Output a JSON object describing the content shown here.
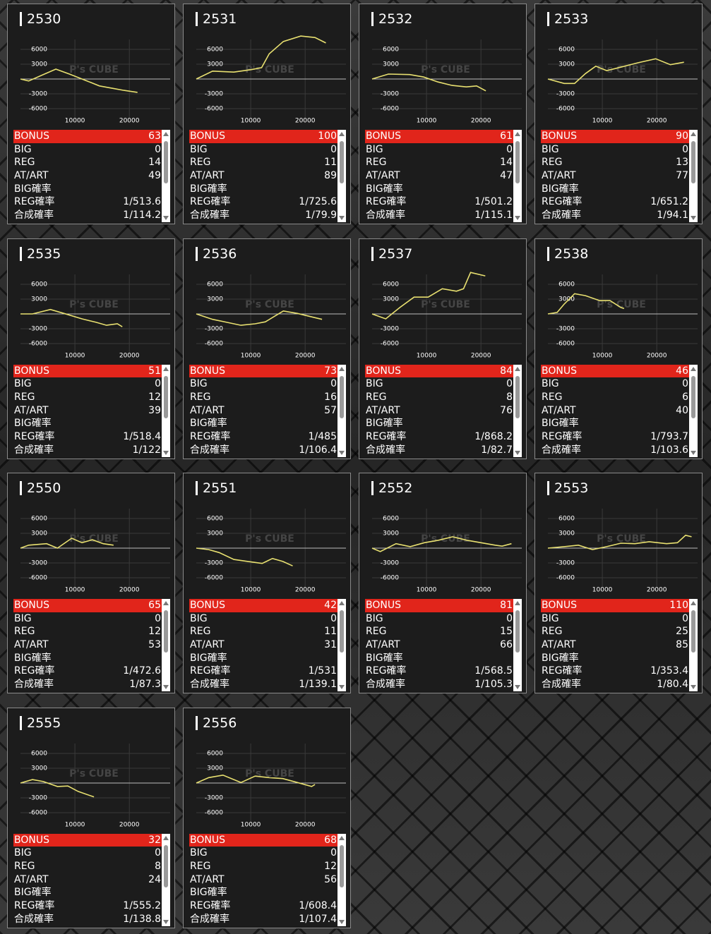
{
  "axes": {
    "xlim": [
      0,
      27500
    ],
    "ylim": [
      -8000,
      8000
    ],
    "xticks": [
      10000,
      20000
    ],
    "yticks": [
      6000,
      3000,
      -3000,
      -6000
    ]
  },
  "watermark": "P's CUBE",
  "stat_labels": [
    "BONUS",
    "BIG",
    "REG",
    "AT/ART",
    "BIG確率",
    "REG確率",
    "合成確率"
  ],
  "cards": [
    {
      "machine": "2530",
      "x": [
        0,
        1500,
        4000,
        6500,
        9000,
        12000,
        14500,
        17000,
        19000,
        21500
      ],
      "y": [
        0,
        -400,
        800,
        2000,
        1000,
        -300,
        -1400,
        -1900,
        -2300,
        -2700
      ],
      "stats": [
        63,
        0,
        14,
        49,
        null,
        "1/513.6",
        "1/114.2"
      ]
    },
    {
      "machine": "2531",
      "x": [
        0,
        3000,
        6900,
        10100,
        12000,
        13400,
        16000,
        19200,
        21800,
        23800
      ],
      "y": [
        0,
        1600,
        1400,
        1900,
        2300,
        5100,
        7600,
        8700,
        8400,
        7300
      ],
      "stats": [
        100,
        0,
        11,
        89,
        null,
        "1/725.6",
        "1/79.9"
      ]
    },
    {
      "machine": "2532",
      "x": [
        0,
        3000,
        6900,
        9500,
        12100,
        14700,
        17300,
        19200,
        20900
      ],
      "y": [
        0,
        1000,
        900,
        400,
        -600,
        -1300,
        -1600,
        -1400,
        -2400
      ],
      "stats": [
        61,
        0,
        14,
        47,
        null,
        "1/501.2",
        "1/115.1"
      ]
    },
    {
      "machine": "2533",
      "x": [
        0,
        3000,
        4900,
        6900,
        8800,
        10800,
        13400,
        16600,
        19800,
        22500,
        25000
      ],
      "y": [
        0,
        -900,
        -900,
        1100,
        2600,
        1700,
        2400,
        3300,
        4100,
        2900,
        3400
      ],
      "stats": [
        90,
        0,
        13,
        77,
        null,
        "1/651.2",
        "1/94.1"
      ]
    },
    {
      "machine": "2535",
      "x": [
        0,
        2200,
        5500,
        8000,
        11300,
        13900,
        15800,
        17800,
        18700
      ],
      "y": [
        0,
        0,
        900,
        100,
        -1000,
        -1700,
        -2300,
        -2000,
        -2600
      ],
      "stats": [
        51,
        0,
        12,
        39,
        null,
        "1/518.4",
        "1/122"
      ]
    },
    {
      "machine": "2536",
      "x": [
        0,
        3000,
        5600,
        8200,
        10800,
        12700,
        16000,
        18600,
        21200,
        23100
      ],
      "y": [
        0,
        -1100,
        -1700,
        -2300,
        -2000,
        -1600,
        600,
        100,
        -600,
        -1100
      ],
      "stats": [
        73,
        0,
        16,
        57,
        null,
        "1/485",
        "1/106.4"
      ]
    },
    {
      "machine": "2537",
      "x": [
        0,
        2500,
        5100,
        7700,
        10300,
        12900,
        15500,
        16800,
        18100,
        20800
      ],
      "y": [
        0,
        -1000,
        1300,
        3400,
        3400,
        5100,
        4600,
        5100,
        8400,
        7700
      ],
      "stats": [
        84,
        0,
        8,
        76,
        null,
        "1/868.2",
        "1/82.7"
      ]
    },
    {
      "machine": "2538",
      "x": [
        0,
        1700,
        3000,
        4900,
        6900,
        9500,
        11400,
        13400,
        14000
      ],
      "y": [
        0,
        300,
        2000,
        4100,
        3700,
        2700,
        2700,
        1300,
        1100
      ],
      "stats": [
        46,
        0,
        6,
        40,
        null,
        "1/793.7",
        "1/103.6"
      ]
    },
    {
      "machine": "2550",
      "x": [
        0,
        1500,
        4800,
        6800,
        9400,
        11300,
        13200,
        15200,
        17100
      ],
      "y": [
        0,
        600,
        900,
        0,
        2000,
        1100,
        1700,
        900,
        600
      ],
      "stats": [
        65,
        0,
        12,
        53,
        null,
        "1/472.6",
        "1/87.3"
      ]
    },
    {
      "machine": "2551",
      "x": [
        0,
        2300,
        4200,
        6900,
        9500,
        12100,
        14000,
        15900,
        17700
      ],
      "y": [
        0,
        -300,
        -900,
        -2300,
        -2700,
        -3100,
        -2100,
        -2700,
        -3600
      ],
      "stats": [
        42,
        0,
        11,
        31,
        null,
        "1/531",
        "1/139.1"
      ]
    },
    {
      "machine": "2552",
      "x": [
        0,
        1500,
        4400,
        7000,
        9600,
        12200,
        14800,
        17400,
        20000,
        22600,
        23900,
        25600
      ],
      "y": [
        0,
        -700,
        900,
        300,
        1100,
        1600,
        2300,
        1600,
        1100,
        600,
        400,
        900
      ],
      "stats": [
        81,
        0,
        15,
        66,
        null,
        "1/568.5",
        "1/105.3"
      ]
    },
    {
      "machine": "2553",
      "x": [
        0,
        3000,
        5600,
        8200,
        10800,
        13400,
        16000,
        18600,
        21800,
        23800,
        25300,
        26400
      ],
      "y": [
        0,
        300,
        600,
        -300,
        300,
        1000,
        900,
        1300,
        900,
        1100,
        2600,
        2300
      ],
      "stats": [
        110,
        0,
        25,
        85,
        null,
        "1/353.4",
        "1/80.4"
      ]
    },
    {
      "machine": "2555",
      "x": [
        0,
        2200,
        4200,
        6800,
        8700,
        10600,
        13200,
        13500
      ],
      "y": [
        0,
        700,
        300,
        -700,
        -600,
        -1700,
        -2700,
        -2800
      ],
      "stats": [
        32,
        0,
        8,
        24,
        null,
        "1/555.2",
        "1/138.8"
      ]
    },
    {
      "machine": "2556",
      "x": [
        0,
        2300,
        4900,
        8200,
        10800,
        13400,
        15900,
        18600,
        21200,
        21800
      ],
      "y": [
        0,
        1100,
        1600,
        100,
        1400,
        1100,
        900,
        100,
        -700,
        -300
      ],
      "stats": [
        68,
        0,
        12,
        56,
        null,
        "1/608.4",
        "1/107.4"
      ]
    }
  ]
}
